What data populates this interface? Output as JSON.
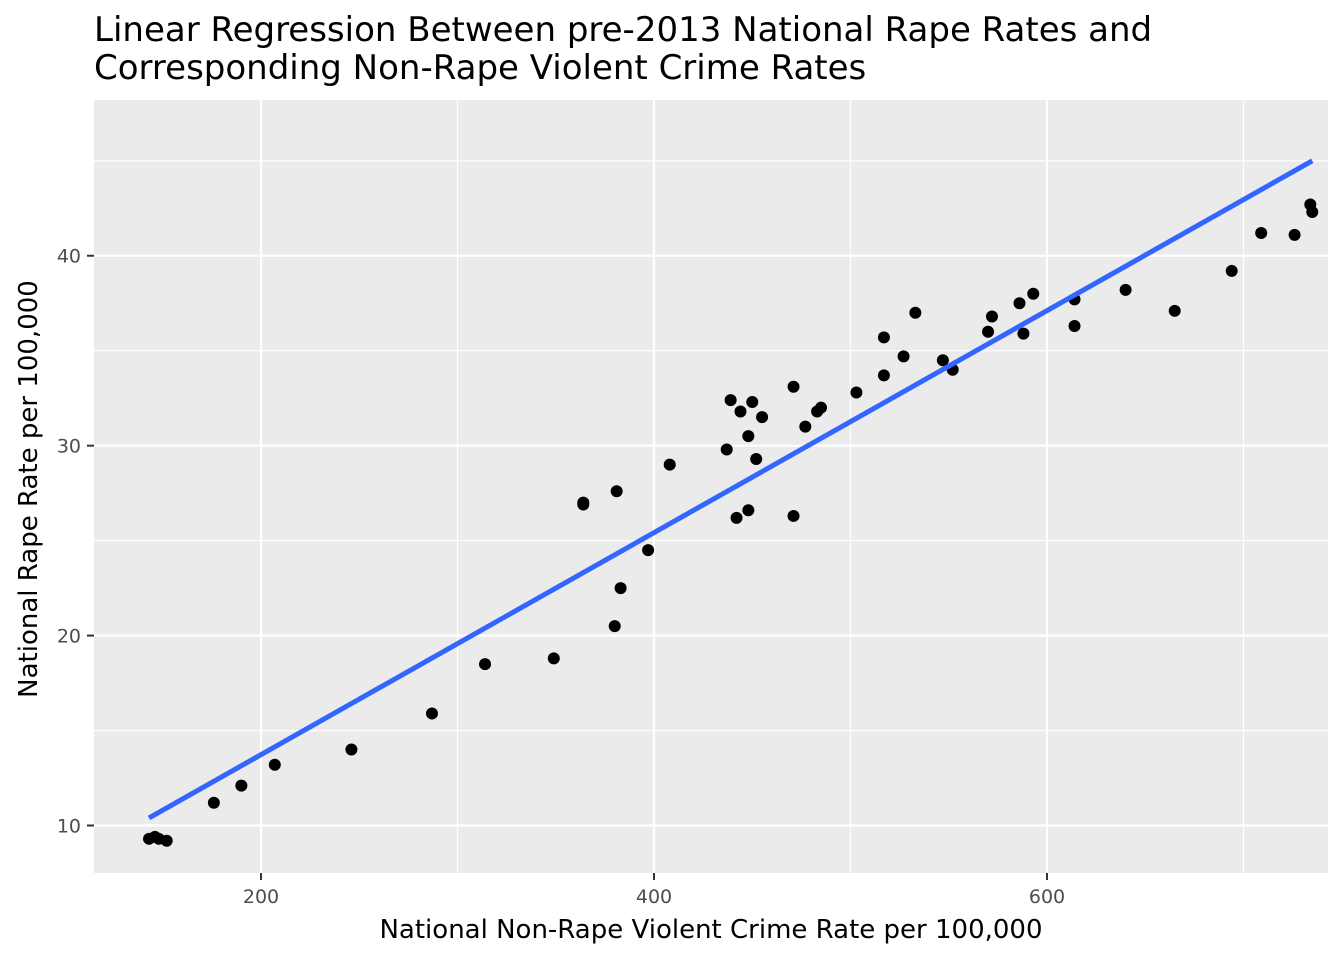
{
  "chart_data": {
    "type": "scatter",
    "title": "Linear Regression Between pre-2013 National Rape Rates and Corresponding Non-Rape Violent Crime Rates",
    "title_lines": [
      "Linear Regression Between pre-2013 National Rape Rates and",
      "Corresponding Non-Rape Violent Crime Rates"
    ],
    "xlabel": "National Non-Rape Violent Crime Rate per 100,000",
    "ylabel": "National Rape Rate per 100,000",
    "xlim": [
      115,
      743
    ],
    "ylim": [
      7.5,
      48.2
    ],
    "x_ticks": [
      200,
      400,
      600
    ],
    "y_ticks": [
      10,
      20,
      30,
      40
    ],
    "grid": true,
    "legend": "none",
    "colors": {
      "panel": "#ebebeb",
      "grid": "#ffffff",
      "point": "#000000",
      "line": "#3366ff"
    },
    "series": [
      {
        "kind": "points",
        "x": [
          143,
          146,
          148,
          152,
          176,
          190,
          207,
          246,
          287,
          314,
          349,
          364,
          364,
          380,
          381,
          383,
          397,
          408,
          437,
          439,
          442,
          444,
          448,
          448,
          450,
          452,
          455,
          471,
          471,
          477,
          483,
          485,
          503,
          517,
          517,
          527,
          533,
          547,
          552,
          570,
          572,
          586,
          588,
          593,
          614,
          614,
          640,
          665,
          694,
          709,
          726,
          734,
          735
        ],
        "y": [
          9.3,
          9.4,
          9.3,
          9.2,
          11.2,
          12.1,
          13.2,
          14.0,
          15.9,
          18.5,
          18.8,
          27.0,
          26.9,
          20.5,
          27.6,
          22.5,
          24.5,
          29.0,
          29.8,
          32.4,
          26.2,
          31.8,
          30.5,
          26.6,
          32.3,
          29.3,
          31.5,
          33.1,
          26.3,
          31.0,
          31.8,
          32.0,
          32.8,
          35.7,
          33.7,
          34.7,
          37.0,
          34.5,
          34.0,
          36.0,
          36.8,
          37.5,
          35.9,
          38.0,
          37.7,
          36.3,
          38.2,
          37.1,
          39.2,
          41.2,
          41.1,
          42.7,
          42.3
        ]
      },
      {
        "kind": "regression_line",
        "x": [
          143,
          735
        ],
        "y": [
          10.4,
          45.0
        ]
      }
    ]
  }
}
